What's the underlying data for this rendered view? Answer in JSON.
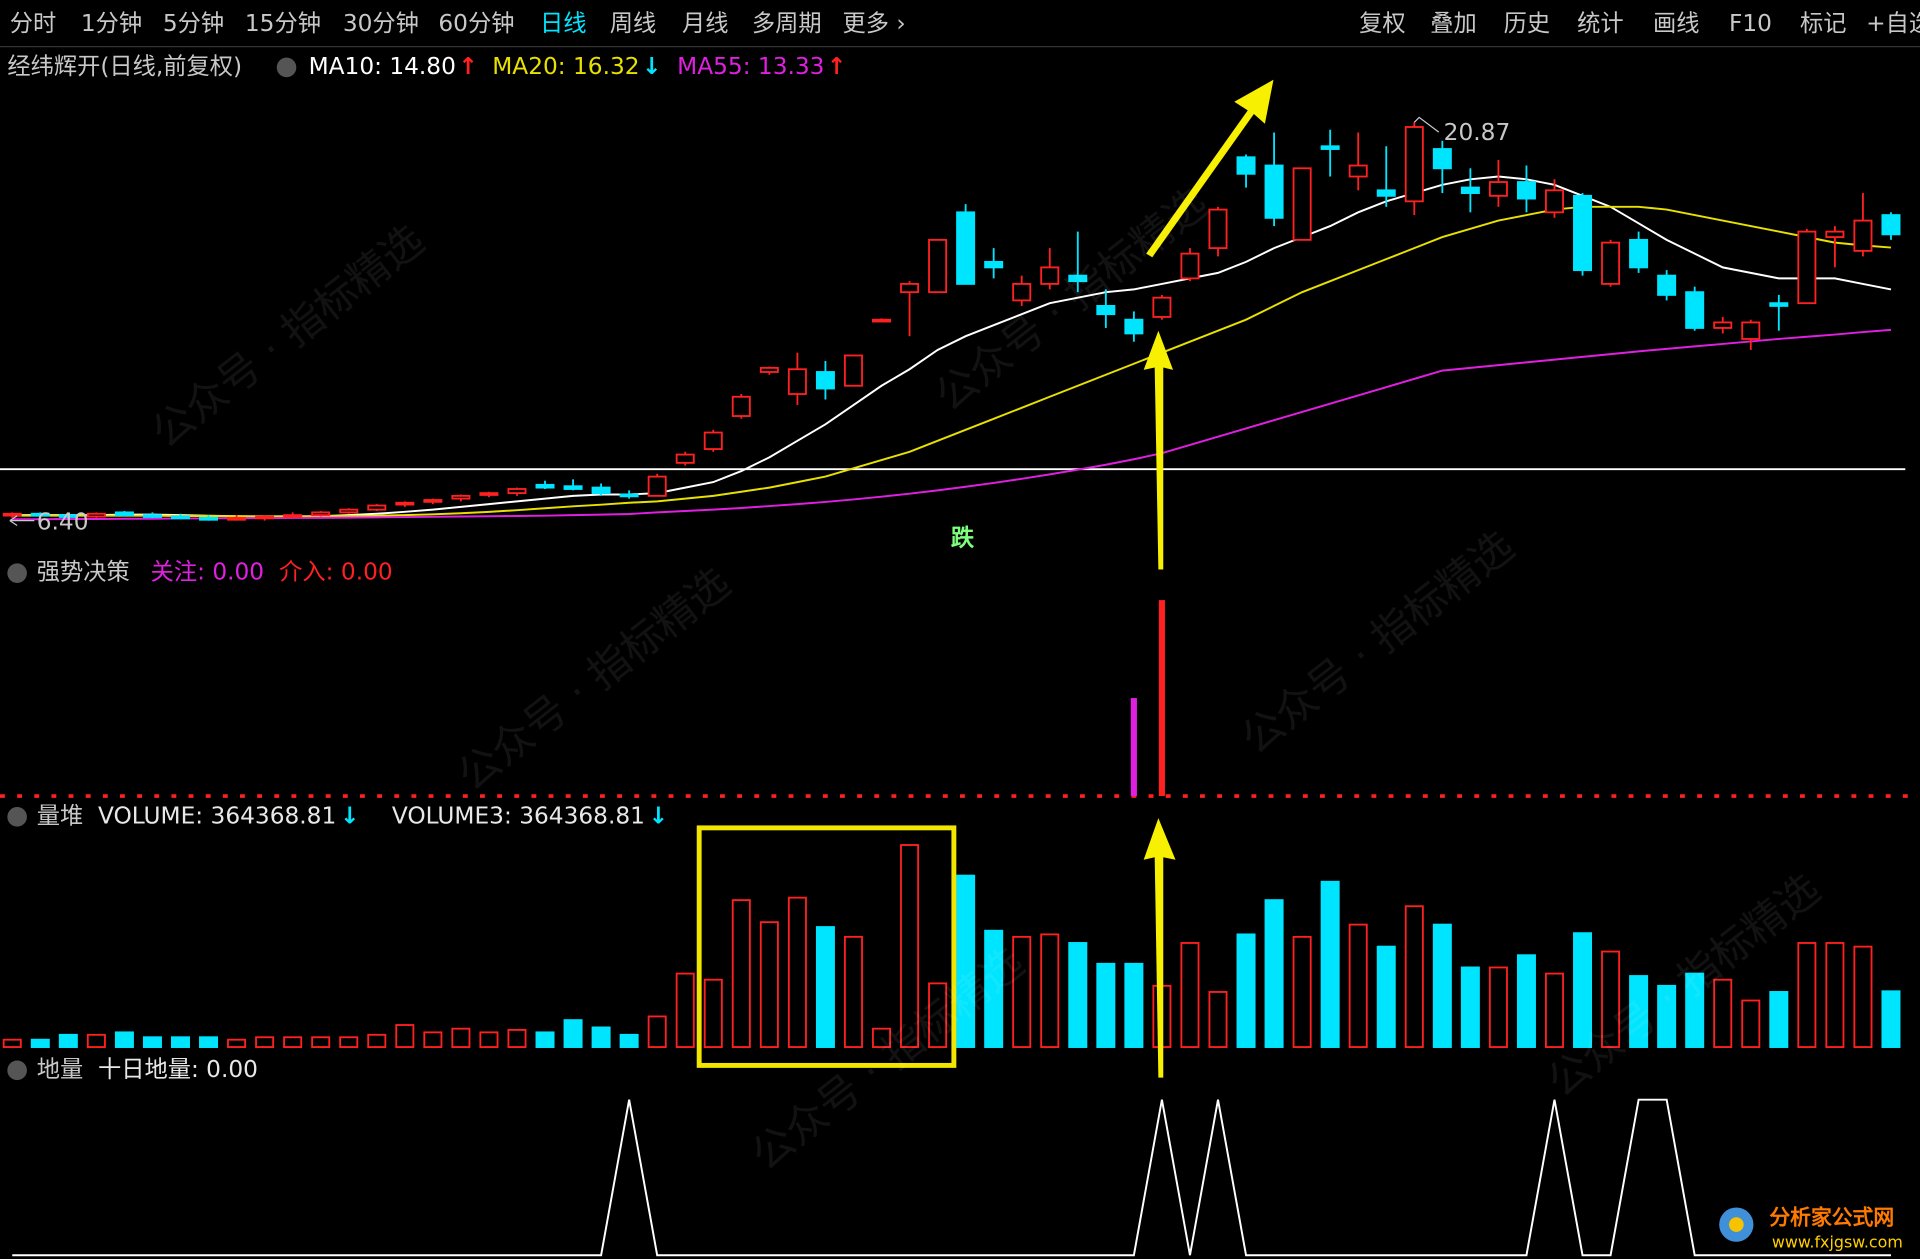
{
  "toolbar": {
    "left": [
      "分时",
      "1分钟",
      "5分钟",
      "15分钟",
      "30分钟",
      "60分钟",
      "日线",
      "周线",
      "月线",
      "多周期",
      "更多 ›"
    ],
    "right": [
      "复权",
      "叠加",
      "历史",
      "统计",
      "画线",
      "F10",
      "标记",
      "+自选"
    ],
    "active": "日线"
  },
  "watermark": "公众号 · 指标精选",
  "logo": {
    "name": "分析家公式网",
    "url": "www.fxjgsw.com"
  },
  "chart_data": [
    {
      "type": "candlestick",
      "title": "经纬辉开(日线,前复权)",
      "up_color": "#ff2020",
      "down_color": "#00e5ff",
      "ylim": [
        5.07,
        23.53
      ],
      "open": [
        6.6,
        6.65,
        6.6,
        6.55,
        6.7,
        6.6,
        6.55,
        6.5,
        6.45,
        6.5,
        6.55,
        6.6,
        6.7,
        6.8,
        7.0,
        7.1,
        7.2,
        7.35,
        7.4,
        7.7,
        7.65,
        7.6,
        7.35,
        7.3,
        8.5,
        9.0,
        10.2,
        11.8,
        11.0,
        11.8,
        11.3,
        13.7,
        14.7,
        14.7,
        17.6,
        15.8,
        14.4,
        15.0,
        15.3,
        14.2,
        13.7,
        13.8,
        15.2,
        16.3,
        19.6,
        19.3,
        16.6,
        20.0,
        18.9,
        18.4,
        18.0,
        19.9,
        18.5,
        18.2,
        18.7,
        17.6,
        18.2,
        15.0,
        16.6,
        15.3,
        14.7,
        13.4,
        13.0,
        14.3,
        14.3,
        16.7,
        16.2,
        17.5
      ],
      "high": [
        6.7,
        6.7,
        6.7,
        6.7,
        6.75,
        6.7,
        6.65,
        6.6,
        6.6,
        6.6,
        6.7,
        6.75,
        6.85,
        7.0,
        7.1,
        7.2,
        7.35,
        7.45,
        7.6,
        7.85,
        7.9,
        7.75,
        7.5,
        8.1,
        8.9,
        9.7,
        11.0,
        12.0,
        12.5,
        12.2,
        12.4,
        13.75,
        15.1,
        16.6,
        17.9,
        16.3,
        15.3,
        16.3,
        16.9,
        14.8,
        14.0,
        14.6,
        16.3,
        17.8,
        19.7,
        20.5,
        19.2,
        20.6,
        20.5,
        20.0,
        20.87,
        20.2,
        19.2,
        19.5,
        19.3,
        18.8,
        18.3,
        16.6,
        16.9,
        15.5,
        14.9,
        13.8,
        13.7,
        14.6,
        17.0,
        17.1,
        18.3,
        17.6
      ],
      "low": [
        6.5,
        6.55,
        6.5,
        6.5,
        6.55,
        6.5,
        6.45,
        6.4,
        6.4,
        6.4,
        6.5,
        6.55,
        6.65,
        6.75,
        6.9,
        7.0,
        7.1,
        7.25,
        7.3,
        7.55,
        7.5,
        7.3,
        7.2,
        7.3,
        8.4,
        8.9,
        10.1,
        11.7,
        10.6,
        10.8,
        11.3,
        13.65,
        13.1,
        14.7,
        15.0,
        15.2,
        14.2,
        14.8,
        14.7,
        13.4,
        12.9,
        13.7,
        15.1,
        16.0,
        18.5,
        17.1,
        16.6,
        18.9,
        18.4,
        17.8,
        17.5,
        18.3,
        17.6,
        17.8,
        17.6,
        17.4,
        15.3,
        14.9,
        15.4,
        14.4,
        13.3,
        13.2,
        12.6,
        13.3,
        14.3,
        15.6,
        16.0,
        16.6
      ],
      "close": [
        6.65,
        6.6,
        6.55,
        6.65,
        6.6,
        6.55,
        6.5,
        6.45,
        6.5,
        6.55,
        6.6,
        6.7,
        6.8,
        6.95,
        7.05,
        7.15,
        7.3,
        7.4,
        7.55,
        7.6,
        7.55,
        7.4,
        7.3,
        8.0,
        8.8,
        9.6,
        10.9,
        11.95,
        11.9,
        11.2,
        12.4,
        13.7,
        15.0,
        16.6,
        15.0,
        15.6,
        15.0,
        15.6,
        15.1,
        13.9,
        13.2,
        14.5,
        16.1,
        17.7,
        19.0,
        17.4,
        19.2,
        19.9,
        19.3,
        18.2,
        20.7,
        19.2,
        18.3,
        18.7,
        18.1,
        18.4,
        15.5,
        16.5,
        15.6,
        14.6,
        13.4,
        13.6,
        13.6,
        14.2,
        16.9,
        16.9,
        17.3,
        16.8
      ],
      "series": [
        {
          "label": "MA10: 14.80",
          "trend": "↑",
          "trend_color": "#ff2020",
          "color": "#ffffff",
          "values": [
            6.6,
            6.6,
            6.6,
            6.6,
            6.62,
            6.62,
            6.6,
            6.58,
            6.56,
            6.55,
            6.55,
            6.56,
            6.6,
            6.65,
            6.72,
            6.8,
            6.9,
            7.0,
            7.1,
            7.2,
            7.3,
            7.35,
            7.35,
            7.4,
            7.6,
            7.8,
            8.2,
            8.7,
            9.3,
            9.9,
            10.6,
            11.3,
            11.9,
            12.6,
            13.1,
            13.5,
            13.9,
            14.3,
            14.5,
            14.7,
            14.8,
            15.0,
            15.2,
            15.4,
            15.8,
            16.3,
            16.7,
            17.1,
            17.6,
            18.0,
            18.3,
            18.6,
            18.8,
            18.9,
            18.8,
            18.6,
            18.2,
            17.8,
            17.2,
            16.6,
            16.1,
            15.6,
            15.4,
            15.2,
            15.2,
            15.2,
            15.0,
            14.8
          ]
        },
        {
          "label": "MA20: 16.32",
          "trend": "↓",
          "trend_color": "#00e5ff",
          "color": "#e8e000",
          "values": [
            6.58,
            6.58,
            6.58,
            6.58,
            6.58,
            6.58,
            6.57,
            6.57,
            6.56,
            6.56,
            6.56,
            6.56,
            6.57,
            6.58,
            6.6,
            6.63,
            6.67,
            6.72,
            6.78,
            6.85,
            6.92,
            6.98,
            7.05,
            7.1,
            7.2,
            7.3,
            7.45,
            7.6,
            7.8,
            8.0,
            8.3,
            8.6,
            8.9,
            9.3,
            9.7,
            10.1,
            10.5,
            10.9,
            11.3,
            11.7,
            12.1,
            12.5,
            12.9,
            13.3,
            13.7,
            14.2,
            14.7,
            15.1,
            15.5,
            15.9,
            16.3,
            16.7,
            17.0,
            17.3,
            17.5,
            17.7,
            17.8,
            17.8,
            17.8,
            17.7,
            17.5,
            17.3,
            17.1,
            16.9,
            16.7,
            16.5,
            16.4,
            16.32
          ]
        },
        {
          "label": "MA55: 13.33",
          "trend": "↑",
          "trend_color": "#ff2020",
          "color": "#e020e0",
          "values": [
            6.45,
            6.45,
            6.46,
            6.46,
            6.47,
            6.47,
            6.48,
            6.48,
            6.49,
            6.49,
            6.5,
            6.5,
            6.51,
            6.52,
            6.53,
            6.54,
            6.55,
            6.56,
            6.57,
            6.58,
            6.6,
            6.62,
            6.64,
            6.7,
            6.75,
            6.8,
            6.86,
            6.93,
            7.0,
            7.08,
            7.17,
            7.27,
            7.38,
            7.5,
            7.63,
            7.77,
            7.92,
            8.08,
            8.25,
            8.43,
            8.63,
            8.85,
            9.15,
            9.45,
            9.75,
            10.05,
            10.35,
            10.65,
            10.95,
            11.25,
            11.55,
            11.85,
            11.95,
            12.05,
            12.15,
            12.25,
            12.35,
            12.45,
            12.55,
            12.64,
            12.73,
            12.82,
            12.91,
            13.0,
            13.08,
            13.16,
            13.25,
            13.33
          ]
        }
      ],
      "reference_line": 8.27,
      "high_label": "20.87",
      "low_label": "6.40",
      "signal_label": "跌"
    },
    {
      "type": "bar",
      "title": "强势决策",
      "ylim": [
        0,
        100
      ],
      "series": [
        {
          "label": "关注: 0.00",
          "color": "#e020e0",
          "values": [
            0,
            0,
            0,
            0,
            0,
            0,
            0,
            0,
            0,
            0,
            0,
            0,
            0,
            0,
            0,
            0,
            0,
            0,
            0,
            0,
            0,
            0,
            0,
            0,
            0,
            0,
            0,
            0,
            0,
            0,
            0,
            0,
            0,
            0,
            0,
            0,
            0,
            0,
            0,
            0,
            50,
            0,
            0,
            0,
            0,
            0,
            0,
            0,
            0,
            0,
            0,
            0,
            0,
            0,
            0,
            0,
            0,
            0,
            0,
            0,
            0,
            0,
            0,
            0,
            0,
            0,
            0,
            0
          ]
        },
        {
          "label": "介入: 0.00",
          "color": "#ff2020",
          "values": [
            0,
            0,
            0,
            0,
            0,
            0,
            0,
            0,
            0,
            0,
            0,
            0,
            0,
            0,
            0,
            0,
            0,
            0,
            0,
            0,
            0,
            0,
            0,
            0,
            0,
            0,
            0,
            0,
            0,
            0,
            0,
            0,
            0,
            0,
            0,
            0,
            0,
            0,
            0,
            0,
            0,
            100,
            0,
            0,
            0,
            0,
            0,
            0,
            0,
            0,
            0,
            0,
            0,
            0,
            0,
            0,
            0,
            0,
            0,
            0,
            0,
            0,
            0,
            0,
            0,
            0,
            0,
            0
          ]
        }
      ]
    },
    {
      "type": "volume",
      "title": "量堆",
      "ylim": [
        0,
        1400000
      ],
      "legend": [
        {
          "label": "VOLUME: 364368.81",
          "trend": "↓",
          "trend_color": "#00e5ff"
        },
        {
          "label": "VOLUME3: 364368.81",
          "trend": "↓",
          "trend_color": "#00e5ff"
        }
      ],
      "values": [
        48000,
        48000,
        80000,
        80000,
        96000,
        64000,
        64000,
        64000,
        48000,
        64000,
        64000,
        64000,
        64000,
        80000,
        144000,
        96000,
        120000,
        96000,
        112000,
        96000,
        176000,
        128000,
        80000,
        200000,
        480000,
        440000,
        960000,
        816000,
        976000,
        784000,
        720000,
        120000,
        1320000,
        416000,
        1120000,
        760000,
        720000,
        736000,
        680000,
        544000,
        544000,
        400000,
        680000,
        360000,
        736000,
        960000,
        720000,
        1080000,
        800000,
        656000,
        920000,
        800000,
        520000,
        520000,
        600000,
        480000,
        744000,
        624000,
        464000,
        400000,
        480000,
        440000,
        304000,
        360000,
        680000,
        680000,
        656000,
        364368.81
      ]
    },
    {
      "type": "line",
      "title": "地量",
      "ylim": [
        0,
        1
      ],
      "series": [
        {
          "label": "十日地量: 0.00",
          "color": "#ffffff",
          "values": [
            0,
            0,
            0,
            0,
            0,
            0,
            0,
            0,
            0,
            0,
            0,
            0,
            0,
            0,
            0,
            0,
            0,
            0,
            0,
            0,
            0,
            0,
            1,
            0,
            0,
            0,
            0,
            0,
            0,
            0,
            0,
            0,
            0,
            0,
            0,
            0,
            0,
            0,
            0,
            0,
            0,
            1,
            0,
            1,
            0,
            0,
            0,
            0,
            0,
            0,
            0,
            0,
            0,
            0,
            0,
            1,
            0,
            0,
            1,
            1,
            0,
            0,
            0,
            0,
            0,
            0,
            0,
            0
          ]
        }
      ]
    }
  ]
}
